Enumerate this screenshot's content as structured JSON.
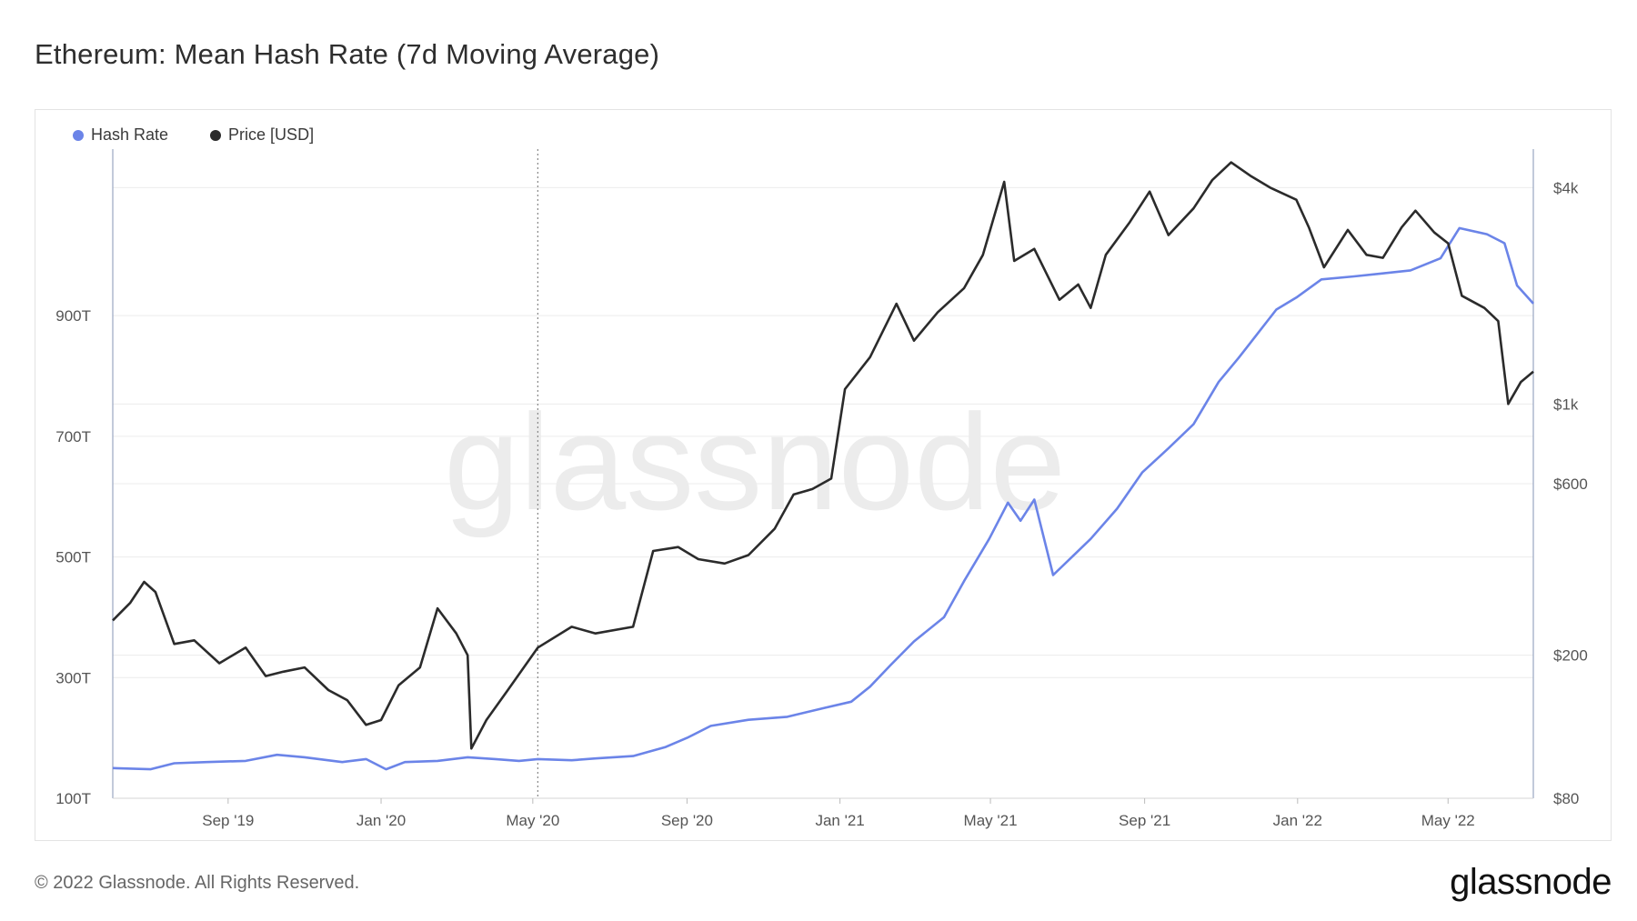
{
  "header": {
    "title": "Ethereum: Mean Hash Rate (7d Moving Average)"
  },
  "footer": {
    "copyright": "© 2022 Glassnode. All Rights Reserved.",
    "brand": "glassnode"
  },
  "watermark": "glassnode",
  "colors": {
    "hash_rate": "#6b84e8",
    "price": "#2b2b2b",
    "grid": "#ececec",
    "axis": "#9aa7c2"
  },
  "chart_data": {
    "type": "line",
    "title": "Ethereum: Mean Hash Rate (7d Moving Average)",
    "legend": {
      "placement": "top-left",
      "entries": [
        "Hash Rate",
        "Price [USD]"
      ]
    },
    "x_range": [
      "2019-06-01",
      "2022-07-08"
    ],
    "x_ticks": [
      {
        "date": "2019-09-01",
        "label": "Sep '19"
      },
      {
        "date": "2020-01-01",
        "label": "Jan '20"
      },
      {
        "date": "2020-05-01",
        "label": "May '20"
      },
      {
        "date": "2020-09-01",
        "label": "Sep '20"
      },
      {
        "date": "2021-01-01",
        "label": "Jan '21"
      },
      {
        "date": "2021-05-01",
        "label": "May '21"
      },
      {
        "date": "2021-09-01",
        "label": "Sep '21"
      },
      {
        "date": "2022-01-01",
        "label": "Jan '22"
      },
      {
        "date": "2022-05-01",
        "label": "May '22"
      }
    ],
    "y_left": {
      "scale": "linear",
      "range": [
        100,
        1170
      ],
      "ticks": [
        {
          "v": 100,
          "label": "100T"
        },
        {
          "v": 300,
          "label": "300T"
        },
        {
          "v": 500,
          "label": "500T"
        },
        {
          "v": 700,
          "label": "700T"
        },
        {
          "v": 900,
          "label": "900T"
        }
      ]
    },
    "y_right": {
      "scale": "log",
      "range": [
        80,
        5000
      ],
      "ticks": [
        {
          "v": 80,
          "label": "$80"
        },
        {
          "v": 200,
          "label": "$200"
        },
        {
          "v": 600,
          "label": "$600"
        },
        {
          "v": 1000,
          "label": "$1k"
        },
        {
          "v": 4000,
          "label": "$4k"
        }
      ]
    },
    "marker_date": "2020-05-05",
    "grid": true,
    "series": [
      {
        "name": "Hash Rate",
        "axis": "left",
        "points": [
          [
            "2019-06-01",
            150
          ],
          [
            "2019-07-01",
            148
          ],
          [
            "2019-07-20",
            158
          ],
          [
            "2019-08-15",
            160
          ],
          [
            "2019-09-15",
            162
          ],
          [
            "2019-10-10",
            172
          ],
          [
            "2019-11-01",
            168
          ],
          [
            "2019-12-01",
            160
          ],
          [
            "2019-12-20",
            165
          ],
          [
            "2020-01-05",
            148
          ],
          [
            "2020-01-20",
            160
          ],
          [
            "2020-02-15",
            162
          ],
          [
            "2020-03-10",
            168
          ],
          [
            "2020-04-01",
            165
          ],
          [
            "2020-04-20",
            162
          ],
          [
            "2020-05-05",
            165
          ],
          [
            "2020-06-01",
            163
          ],
          [
            "2020-06-20",
            166
          ],
          [
            "2020-07-20",
            170
          ],
          [
            "2020-08-15",
            185
          ],
          [
            "2020-09-01",
            200
          ],
          [
            "2020-09-20",
            220
          ],
          [
            "2020-10-20",
            230
          ],
          [
            "2020-11-20",
            235
          ],
          [
            "2020-12-20",
            250
          ],
          [
            "2021-01-10",
            260
          ],
          [
            "2021-01-25",
            285
          ],
          [
            "2021-02-10",
            320
          ],
          [
            "2021-03-01",
            360
          ],
          [
            "2021-03-25",
            400
          ],
          [
            "2021-04-10",
            460
          ],
          [
            "2021-04-30",
            530
          ],
          [
            "2021-05-15",
            590
          ],
          [
            "2021-05-25",
            560
          ],
          [
            "2021-06-05",
            595
          ],
          [
            "2021-06-20",
            470
          ],
          [
            "2021-07-05",
            500
          ],
          [
            "2021-07-20",
            530
          ],
          [
            "2021-08-10",
            580
          ],
          [
            "2021-08-30",
            640
          ],
          [
            "2021-09-20",
            680
          ],
          [
            "2021-10-10",
            720
          ],
          [
            "2021-10-30",
            790
          ],
          [
            "2021-11-15",
            830
          ],
          [
            "2021-11-30",
            870
          ],
          [
            "2021-12-15",
            910
          ],
          [
            "2021-12-31",
            930
          ],
          [
            "2022-01-20",
            960
          ],
          [
            "2022-02-15",
            965
          ],
          [
            "2022-03-10",
            970
          ],
          [
            "2022-04-01",
            975
          ],
          [
            "2022-04-25",
            995
          ],
          [
            "2022-05-10",
            1045
          ],
          [
            "2022-06-01",
            1035
          ],
          [
            "2022-06-15",
            1020
          ],
          [
            "2022-06-25",
            950
          ],
          [
            "2022-07-08",
            920
          ]
        ]
      },
      {
        "name": "Price [USD]",
        "axis": "right",
        "points": [
          [
            "2019-06-01",
            250
          ],
          [
            "2019-06-15",
            280
          ],
          [
            "2019-06-26",
            320
          ],
          [
            "2019-07-05",
            300
          ],
          [
            "2019-07-20",
            215
          ],
          [
            "2019-08-05",
            220
          ],
          [
            "2019-08-25",
            190
          ],
          [
            "2019-09-15",
            210
          ],
          [
            "2019-10-01",
            175
          ],
          [
            "2019-10-15",
            180
          ],
          [
            "2019-11-01",
            185
          ],
          [
            "2019-11-20",
            160
          ],
          [
            "2019-12-05",
            150
          ],
          [
            "2019-12-20",
            128
          ],
          [
            "2020-01-01",
            132
          ],
          [
            "2020-01-15",
            165
          ],
          [
            "2020-02-01",
            185
          ],
          [
            "2020-02-15",
            270
          ],
          [
            "2020-03-01",
            230
          ],
          [
            "2020-03-10",
            200
          ],
          [
            "2020-03-13",
            110
          ],
          [
            "2020-03-25",
            132
          ],
          [
            "2020-04-10",
            158
          ],
          [
            "2020-05-05",
            210
          ],
          [
            "2020-06-01",
            240
          ],
          [
            "2020-06-20",
            230
          ],
          [
            "2020-07-20",
            240
          ],
          [
            "2020-08-05",
            390
          ],
          [
            "2020-08-25",
            400
          ],
          [
            "2020-09-10",
            370
          ],
          [
            "2020-10-01",
            360
          ],
          [
            "2020-10-20",
            380
          ],
          [
            "2020-11-10",
            450
          ],
          [
            "2020-11-25",
            560
          ],
          [
            "2020-12-10",
            580
          ],
          [
            "2020-12-25",
            620
          ],
          [
            "2021-01-05",
            1100
          ],
          [
            "2021-01-25",
            1350
          ],
          [
            "2021-02-15",
            1900
          ],
          [
            "2021-03-01",
            1500
          ],
          [
            "2021-03-20",
            1800
          ],
          [
            "2021-04-10",
            2100
          ],
          [
            "2021-04-25",
            2600
          ],
          [
            "2021-05-12",
            4150
          ],
          [
            "2021-05-20",
            2500
          ],
          [
            "2021-06-05",
            2700
          ],
          [
            "2021-06-25",
            1950
          ],
          [
            "2021-07-10",
            2150
          ],
          [
            "2021-07-20",
            1850
          ],
          [
            "2021-08-01",
            2600
          ],
          [
            "2021-08-20",
            3200
          ],
          [
            "2021-09-05",
            3900
          ],
          [
            "2021-09-20",
            2950
          ],
          [
            "2021-10-10",
            3500
          ],
          [
            "2021-10-25",
            4200
          ],
          [
            "2021-11-09",
            4700
          ],
          [
            "2021-11-25",
            4300
          ],
          [
            "2021-12-10",
            4000
          ],
          [
            "2021-12-31",
            3700
          ],
          [
            "2022-01-10",
            3100
          ],
          [
            "2022-01-22",
            2400
          ],
          [
            "2022-02-10",
            3050
          ],
          [
            "2022-02-25",
            2600
          ],
          [
            "2022-03-10",
            2550
          ],
          [
            "2022-03-25",
            3100
          ],
          [
            "2022-04-05",
            3450
          ],
          [
            "2022-04-20",
            3000
          ],
          [
            "2022-05-01",
            2800
          ],
          [
            "2022-05-12",
            2000
          ],
          [
            "2022-05-30",
            1850
          ],
          [
            "2022-06-10",
            1700
          ],
          [
            "2022-06-18",
            1000
          ],
          [
            "2022-06-28",
            1150
          ],
          [
            "2022-07-08",
            1230
          ]
        ]
      }
    ]
  }
}
